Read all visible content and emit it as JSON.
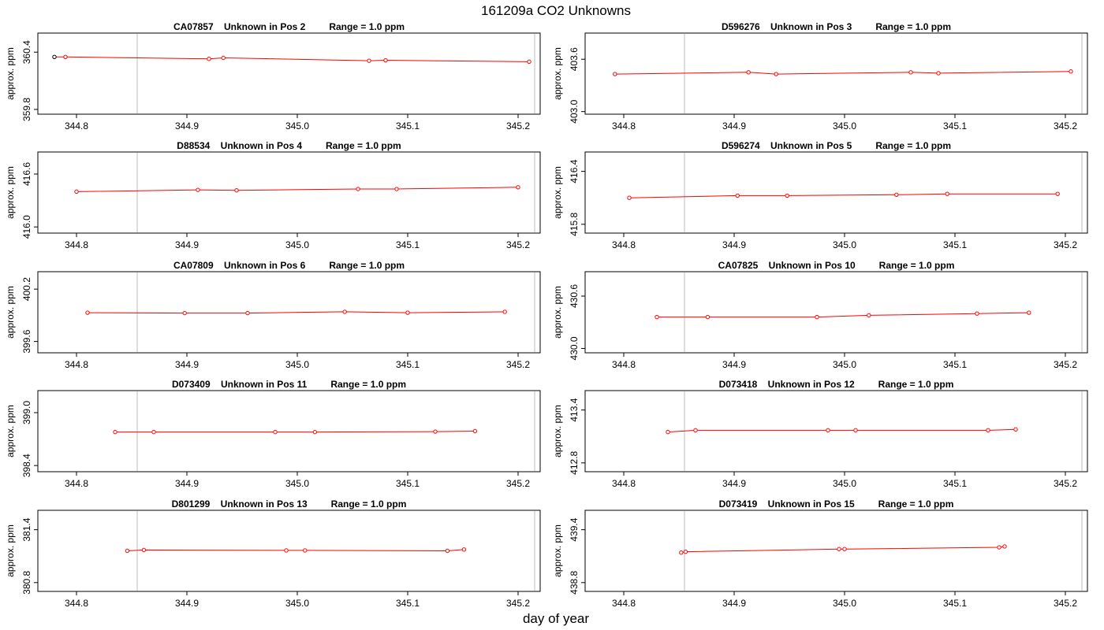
{
  "figure": {
    "title": "161209a  CO2 Unknowns",
    "xlabel": "day of year"
  },
  "colors": {
    "series": "#ff0000",
    "first_point": "#000000",
    "vline": "#bebebe",
    "frame": "#000000",
    "background": "#ffffff"
  },
  "chart_data": [
    {
      "type": "line",
      "title": "CA07857    Unknown in Pos 2         Range = 1.0 ppm",
      "ylabel": "approx. ppm",
      "xlim": [
        344.765,
        345.22
      ],
      "ylim": [
        359.75,
        360.6
      ],
      "x_ticks": [
        "344.8",
        "344.9",
        "345.0",
        "345.1",
        "345.2"
      ],
      "y_ticks": [
        "359.8",
        "360.4"
      ],
      "vlines": [
        344.855,
        345.215
      ],
      "first_point_black": true,
      "x": [
        344.78,
        344.79,
        344.92,
        344.933,
        345.065,
        345.08,
        345.21
      ],
      "y": [
        360.35,
        360.35,
        360.33,
        360.34,
        360.31,
        360.315,
        360.3
      ]
    },
    {
      "type": "line",
      "title": "D596276    Unknown in Pos 3         Range = 1.0 ppm",
      "ylabel": "approx. ppm",
      "xlim": [
        344.765,
        345.22
      ],
      "ylim": [
        402.97,
        403.9
      ],
      "x_ticks": [
        "344.8",
        "344.9",
        "345.0",
        "345.1",
        "345.2"
      ],
      "y_ticks": [
        "403.0",
        "403.6"
      ],
      "vlines": [
        344.855,
        345.215
      ],
      "first_point_black": false,
      "x": [
        344.792,
        344.913,
        344.938,
        345.06,
        345.085,
        345.205
      ],
      "y": [
        403.43,
        403.45,
        403.43,
        403.45,
        403.44,
        403.46
      ]
    },
    {
      "type": "line",
      "title": "D88534    Unknown in Pos 4         Range = 1.0 ppm",
      "ylabel": "approx. ppm",
      "xlim": [
        344.765,
        345.22
      ],
      "ylim": [
        415.93,
        416.85
      ],
      "x_ticks": [
        "344.8",
        "344.9",
        "345.0",
        "345.1",
        "345.2"
      ],
      "y_ticks": [
        "416.0",
        "416.6"
      ],
      "vlines": [
        344.855,
        345.215
      ],
      "first_point_black": false,
      "x": [
        344.8,
        344.91,
        344.945,
        345.055,
        345.09,
        345.2
      ],
      "y": [
        416.4,
        416.42,
        416.415,
        416.43,
        416.43,
        416.45
      ]
    },
    {
      "type": "line",
      "title": "D596274    Unknown in Pos 5         Range = 1.0 ppm",
      "ylabel": "approx. ppm",
      "xlim": [
        344.765,
        345.22
      ],
      "ylim": [
        415.7,
        416.62
      ],
      "x_ticks": [
        "344.8",
        "344.9",
        "345.0",
        "345.1",
        "345.2"
      ],
      "y_ticks": [
        "415.8",
        "416.4"
      ],
      "vlines": [
        344.855,
        345.215
      ],
      "first_point_black": false,
      "x": [
        344.805,
        344.903,
        344.948,
        345.047,
        345.093,
        345.193
      ],
      "y": [
        416.1,
        416.125,
        416.125,
        416.135,
        416.145,
        416.145
      ]
    },
    {
      "type": "line",
      "title": "CA07809    Unknown in Pos 6         Range = 1.0 ppm",
      "ylabel": "approx. ppm",
      "xlim": [
        344.765,
        345.22
      ],
      "ylim": [
        399.47,
        400.4
      ],
      "x_ticks": [
        "344.8",
        "344.9",
        "345.0",
        "345.1",
        "345.2"
      ],
      "y_ticks": [
        "399.6",
        "400.2"
      ],
      "vlines": [
        344.855,
        345.215
      ],
      "first_point_black": false,
      "x": [
        344.81,
        344.898,
        344.955,
        345.043,
        345.1,
        345.188
      ],
      "y": [
        399.93,
        399.925,
        399.925,
        399.94,
        399.93,
        399.94
      ]
    },
    {
      "type": "line",
      "title": "CA07825    Unknown in Pos 10         Range = 1.0 ppm",
      "ylabel": "approx. ppm",
      "xlim": [
        344.765,
        345.22
      ],
      "ylim": [
        429.95,
        430.88
      ],
      "x_ticks": [
        "344.8",
        "344.9",
        "345.0",
        "345.1",
        "345.2"
      ],
      "y_ticks": [
        "430.0",
        "430.6"
      ],
      "vlines": [
        344.855,
        345.215
      ],
      "first_point_black": false,
      "x": [
        344.83,
        344.876,
        344.975,
        345.022,
        345.12,
        345.167
      ],
      "y": [
        430.36,
        430.36,
        430.36,
        430.38,
        430.4,
        430.41
      ]
    },
    {
      "type": "line",
      "title": "D073409    Unknown in Pos 11         Range = 1.0 ppm",
      "ylabel": "approx. ppm",
      "xlim": [
        344.765,
        345.22
      ],
      "ylim": [
        398.33,
        399.25
      ],
      "x_ticks": [
        "344.8",
        "344.9",
        "345.0",
        "345.1",
        "345.2"
      ],
      "y_ticks": [
        "398.4",
        "399.0"
      ],
      "vlines": [
        344.855,
        345.215
      ],
      "first_point_black": false,
      "x": [
        344.835,
        344.87,
        344.98,
        345.016,
        345.125,
        345.161
      ],
      "y": [
        398.78,
        398.78,
        398.78,
        398.78,
        398.785,
        398.79
      ]
    },
    {
      "type": "line",
      "title": "D073418    Unknown in Pos 12         Range = 1.0 ppm",
      "ylabel": "approx. ppm",
      "xlim": [
        344.765,
        345.22
      ],
      "ylim": [
        412.7,
        413.62
      ],
      "x_ticks": [
        "344.8",
        "344.9",
        "345.0",
        "345.1",
        "345.2"
      ],
      "y_ticks": [
        "412.8",
        "413.4"
      ],
      "vlines": [
        344.855,
        345.215
      ],
      "first_point_black": false,
      "x": [
        344.84,
        344.865,
        344.985,
        345.01,
        345.13,
        345.155
      ],
      "y": [
        413.15,
        413.17,
        413.17,
        413.17,
        413.17,
        413.18
      ]
    },
    {
      "type": "line",
      "title": "D801299    Unknown in Pos 13         Range = 1.0 ppm",
      "ylabel": "approx. ppm",
      "xlim": [
        344.765,
        345.22
      ],
      "ylim": [
        380.7,
        381.62
      ],
      "x_ticks": [
        "344.8",
        "344.9",
        "345.0",
        "345.1",
        "345.2"
      ],
      "y_ticks": [
        "380.8",
        "381.4"
      ],
      "vlines": [
        344.855,
        345.215
      ],
      "first_point_black": false,
      "x": [
        344.846,
        344.861,
        344.99,
        345.007,
        345.136,
        345.151
      ],
      "y": [
        381.16,
        381.17,
        381.165,
        381.165,
        381.16,
        381.175
      ]
    },
    {
      "type": "line",
      "title": "D073419    Unknown in Pos 15         Range = 1.0 ppm",
      "ylabel": "approx. ppm",
      "xlim": [
        344.765,
        345.22
      ],
      "ylim": [
        438.7,
        439.62
      ],
      "x_ticks": [
        "344.8",
        "344.9",
        "345.0",
        "345.1",
        "345.2"
      ],
      "y_ticks": [
        "438.8",
        "439.4"
      ],
      "vlines": [
        344.855,
        345.215
      ],
      "first_point_black": false,
      "x": [
        344.852,
        344.856,
        344.995,
        345.0,
        345.14,
        345.145
      ],
      "y": [
        439.14,
        439.15,
        439.18,
        439.18,
        439.2,
        439.21
      ]
    }
  ]
}
